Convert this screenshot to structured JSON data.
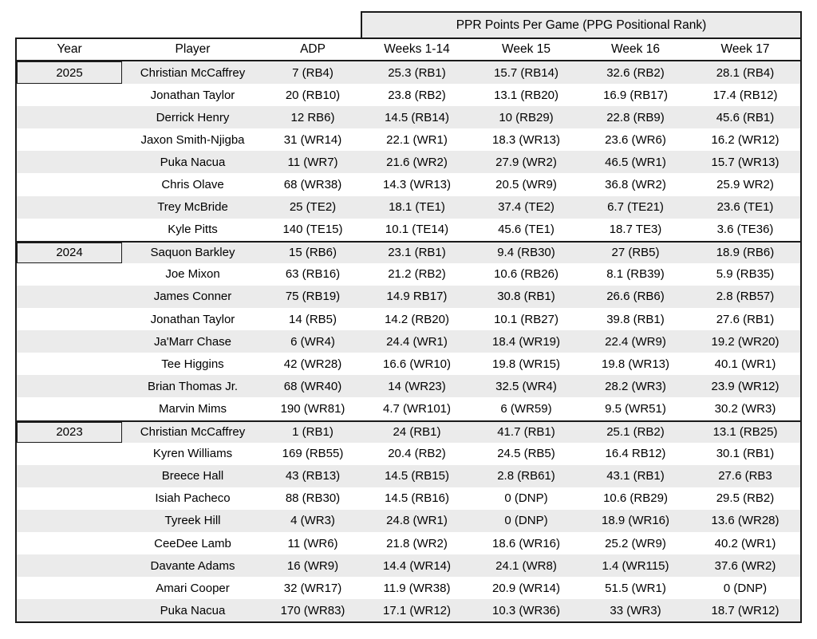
{
  "colors": {
    "stripe": "#ebebeb",
    "line": "#1a1a1a",
    "background": "#ffffff"
  },
  "table": {
    "span_header": "PPR Points Per Game (PPG Positional Rank)",
    "columns": [
      "Year",
      "Player",
      "ADP",
      "Weeks 1-14",
      "Week 15",
      "Week 16",
      "Week 17"
    ],
    "rows": [
      [
        "2025",
        "Christian McCaffrey",
        "7 (RB4)",
        "25.3 (RB1)",
        "15.7 (RB14)",
        "32.6 (RB2)",
        "28.1 (RB4)"
      ],
      [
        "",
        "Jonathan Taylor",
        "20 (RB10)",
        "23.8 (RB2)",
        "13.1 (RB20)",
        "16.9 (RB17)",
        "17.4 (RB12)"
      ],
      [
        "",
        "Derrick Henry",
        "12 RB6)",
        "14.5 (RB14)",
        "10 (RB29)",
        "22.8 (RB9)",
        "45.6 (RB1)"
      ],
      [
        "",
        "Jaxon Smith-Njigba",
        "31 (WR14)",
        "22.1 (WR1)",
        "18.3 (WR13)",
        "23.6 (WR6)",
        "16.2 (WR12)"
      ],
      [
        "",
        "Puka Nacua",
        "11 (WR7)",
        "21.6 (WR2)",
        "27.9 (WR2)",
        "46.5 (WR1)",
        "15.7 (WR13)"
      ],
      [
        "",
        "Chris Olave",
        "68 (WR38)",
        "14.3 (WR13)",
        "20.5 (WR9)",
        "36.8 (WR2)",
        "25.9 WR2)"
      ],
      [
        "",
        "Trey McBride",
        "25 (TE2)",
        "18.1 (TE1)",
        "37.4 (TE2)",
        "6.7 (TE21)",
        "23.6 (TE1)"
      ],
      [
        "",
        "Kyle Pitts",
        "140 (TE15)",
        "10.1 (TE14)",
        "45.6 (TE1)",
        "18.7 TE3)",
        "3.6 (TE36)"
      ],
      [
        "2024",
        "Saquon Barkley",
        "15 (RB6)",
        "23.1 (RB1)",
        "9.4 (RB30)",
        "27 (RB5)",
        "18.9 (RB6)"
      ],
      [
        "",
        "Joe Mixon",
        "63 (RB16)",
        "21.2 (RB2)",
        "10.6 (RB26)",
        "8.1 (RB39)",
        "5.9 (RB35)"
      ],
      [
        "",
        "James Conner",
        "75 (RB19)",
        "14.9 RB17)",
        "30.8 (RB1)",
        "26.6 (RB6)",
        "2.8 (RB57)"
      ],
      [
        "",
        "Jonathan Taylor",
        "14 (RB5)",
        "14.2 (RB20)",
        "10.1 (RB27)",
        "39.8 (RB1)",
        "27.6 (RB1)"
      ],
      [
        "",
        "Ja'Marr Chase",
        "6 (WR4)",
        "24.4 (WR1)",
        "18.4 (WR19)",
        "22.4 (WR9)",
        "19.2 (WR20)"
      ],
      [
        "",
        "Tee Higgins",
        "42 (WR28)",
        "16.6 (WR10)",
        "19.8 (WR15)",
        "19.8 (WR13)",
        "40.1 (WR1)"
      ],
      [
        "",
        "Brian Thomas Jr.",
        "68 (WR40)",
        "14 (WR23)",
        "32.5 (WR4)",
        "28.2 (WR3)",
        "23.9 (WR12)"
      ],
      [
        "",
        "Marvin Mims",
        "190 (WR81)",
        "4.7 (WR101)",
        "6 (WR59)",
        "9.5 (WR51)",
        "30.2 (WR3)"
      ],
      [
        "2023",
        "Christian McCaffrey",
        "1 (RB1)",
        "24 (RB1)",
        "41.7 (RB1)",
        "25.1 (RB2)",
        "13.1 (RB25)"
      ],
      [
        "",
        "Kyren Williams",
        "169 (RB55)",
        "20.4 (RB2)",
        "24.5 (RB5)",
        "16.4 RB12)",
        "30.1 (RB1)"
      ],
      [
        "",
        "Breece Hall",
        "43 (RB13)",
        "14.5 (RB15)",
        "2.8 (RB61)",
        "43.1 (RB1)",
        "27.6 (RB3"
      ],
      [
        "",
        "Isiah Pacheco",
        "88 (RB30)",
        "14.5 (RB16)",
        "0 (DNP)",
        "10.6 (RB29)",
        "29.5 (RB2)"
      ],
      [
        "",
        "Tyreek Hill",
        "4 (WR3)",
        "24.8 (WR1)",
        "0 (DNP)",
        "18.9 (WR16)",
        "13.6 (WR28)"
      ],
      [
        "",
        "CeeDee Lamb",
        "11 (WR6)",
        "21.8 (WR2)",
        "18.6 (WR16)",
        "25.2 (WR9)",
        "40.2 (WR1)"
      ],
      [
        "",
        "Davante Adams",
        "16 (WR9)",
        "14.4 (WR14)",
        "24.1 (WR8)",
        "1.4 (WR115)",
        "37.6 (WR2)"
      ],
      [
        "",
        "Amari Cooper",
        "32 (WR17)",
        "11.9 (WR38)",
        "20.9 (WR14)",
        "51.5 (WR1)",
        "0 (DNP)"
      ],
      [
        "",
        "Puka Nacua",
        "170 (WR83)",
        "17.1 (WR12)",
        "10.3 (WR36)",
        "33 (WR3)",
        "18.7 (WR12)"
      ]
    ]
  }
}
